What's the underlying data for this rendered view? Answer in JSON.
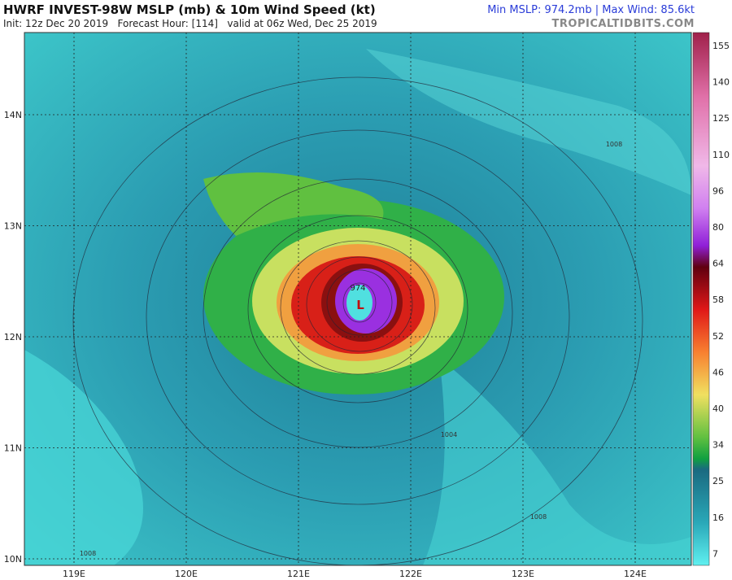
{
  "header": {
    "title": "HWRF INVEST-98W MSLP (mb) & 10m Wind Speed (kt)",
    "subtitle": "Init: 12z Dec 20 2019   Forecast Hour: [114]   valid at 06z Wed, Dec 25 2019",
    "stats": "Min MSLP: 974.2mb | Max Wind: 85.6kt",
    "credit": "TROPICALTIDBITS.COM"
  },
  "map": {
    "latitudes": [
      "14N",
      "13N",
      "12N",
      "11N",
      "10N"
    ],
    "longitudes": [
      "119E",
      "120E",
      "121E",
      "122E",
      "123E",
      "124E"
    ],
    "low": {
      "symbol": "L",
      "pressure": "974"
    },
    "isobar_labels": [
      "1008",
      "1004",
      "1008",
      "1008"
    ]
  },
  "colorbar": {
    "ticks": [
      155,
      140,
      125,
      110,
      96,
      80,
      64,
      58,
      52,
      46,
      40,
      34,
      25,
      16,
      7
    ]
  }
}
